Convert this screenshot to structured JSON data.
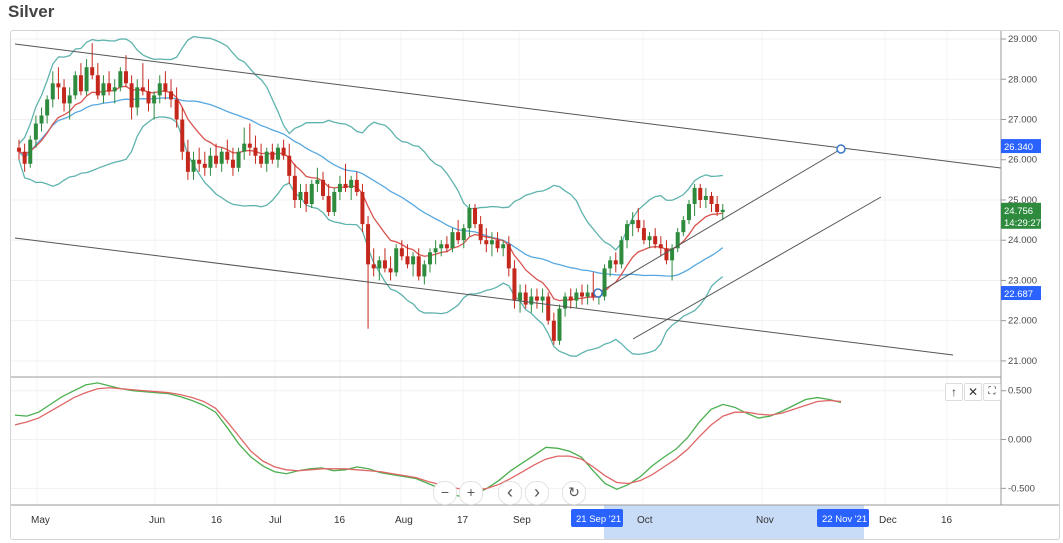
{
  "header": {
    "title": "Silver"
  },
  "colors": {
    "up": "#26a69a",
    "down": "#b2231f",
    "bull": "#2e8b3e",
    "bear": "#c4271c",
    "bollinger": "#5fb3ad",
    "ma_red": "#d9534f",
    "ma_blue": "#58a8e0",
    "channel": "#555555",
    "osc_green": "#4caf50",
    "osc_red": "#e06666",
    "highlight": "#c9dcf7"
  },
  "icons": [
    "arrow-up-icon",
    "close-icon",
    "maximize-icon",
    "zoom-out-icon",
    "zoom-in-icon",
    "chevron-left-icon",
    "chevron-right-icon",
    "reset-icon",
    "gear-icon"
  ],
  "controls": {
    "up": "↑",
    "close": "✕",
    "max": "⛶",
    "minus": "−",
    "plus": "+",
    "prev": "‹",
    "next": "›",
    "reset": "↻",
    "gear": "⚙"
  },
  "chart_data": [
    {
      "type": "candlestick",
      "title": "Silver",
      "ylim": [
        20.6,
        29.2
      ],
      "y_ticks": [
        "29.000",
        "28.000",
        "27.000",
        "26.000",
        "25.000",
        "24.000",
        "23.000",
        "22.000",
        "21.000"
      ],
      "x_ticks": [
        "May",
        "Jun",
        "16",
        "Jul",
        "16",
        "Aug",
        "17",
        "Sep",
        "Oct",
        "Nov",
        "Dec",
        "16"
      ],
      "price_tags": {
        "upper": "26.340",
        "current": "24.756",
        "timer": "14:29:27",
        "lower": "22.687"
      },
      "crosshair_labels": {
        "start": "21 Sep '21",
        "end": "22 Nov '21"
      },
      "ohlc": [
        [
          26.3,
          26.5,
          26.0,
          26.2
        ],
        [
          26.2,
          26.4,
          25.7,
          25.9
        ],
        [
          25.9,
          26.6,
          25.8,
          26.5
        ],
        [
          26.5,
          27.1,
          26.3,
          26.9
        ],
        [
          26.9,
          27.3,
          26.7,
          27.1
        ],
        [
          27.1,
          27.6,
          26.9,
          27.5
        ],
        [
          27.5,
          28.2,
          27.3,
          27.9
        ],
        [
          27.9,
          28.3,
          27.5,
          27.8
        ],
        [
          27.8,
          28.0,
          27.2,
          27.4
        ],
        [
          27.4,
          27.8,
          27.0,
          27.6
        ],
        [
          27.6,
          28.2,
          27.5,
          28.1
        ],
        [
          28.1,
          28.4,
          27.6,
          27.7
        ],
        [
          27.7,
          28.5,
          27.6,
          28.3
        ],
        [
          28.3,
          28.9,
          28.0,
          28.1
        ],
        [
          28.1,
          28.4,
          27.5,
          27.6
        ],
        [
          27.6,
          28.1,
          27.4,
          27.9
        ],
        [
          27.9,
          28.2,
          27.6,
          27.7
        ],
        [
          27.7,
          28.0,
          27.4,
          27.8
        ],
        [
          27.8,
          28.3,
          27.7,
          28.2
        ],
        [
          28.2,
          28.6,
          27.8,
          27.9
        ],
        [
          27.9,
          28.1,
          27.0,
          27.3
        ],
        [
          27.3,
          28.0,
          27.1,
          27.8
        ],
        [
          27.8,
          28.4,
          27.6,
          27.7
        ],
        [
          27.7,
          28.0,
          27.2,
          27.4
        ],
        [
          27.4,
          27.7,
          27.0,
          27.6
        ],
        [
          27.6,
          28.1,
          27.4,
          27.9
        ],
        [
          27.9,
          28.2,
          27.5,
          27.7
        ],
        [
          27.7,
          28.0,
          27.3,
          27.5
        ],
        [
          27.5,
          27.8,
          26.8,
          27.0
        ],
        [
          27.0,
          27.3,
          26.0,
          26.2
        ],
        [
          26.2,
          26.5,
          25.5,
          25.7
        ],
        [
          25.7,
          26.2,
          25.5,
          26.0
        ],
        [
          26.0,
          26.3,
          25.7,
          25.9
        ],
        [
          25.9,
          26.2,
          25.6,
          25.8
        ],
        [
          25.8,
          26.3,
          25.6,
          26.1
        ],
        [
          26.1,
          26.4,
          25.8,
          25.9
        ],
        [
          25.9,
          26.3,
          25.7,
          26.2
        ],
        [
          26.2,
          26.5,
          25.9,
          26.0
        ],
        [
          26.0,
          26.3,
          25.6,
          25.8
        ],
        [
          25.8,
          26.3,
          25.7,
          26.2
        ],
        [
          26.2,
          26.8,
          26.0,
          26.4
        ],
        [
          26.4,
          26.9,
          26.1,
          26.3
        ],
        [
          26.3,
          26.6,
          25.9,
          26.1
        ],
        [
          26.1,
          26.4,
          25.8,
          25.9
        ],
        [
          25.9,
          26.3,
          25.7,
          26.2
        ],
        [
          26.2,
          26.4,
          25.9,
          26.0
        ],
        [
          26.0,
          26.4,
          25.8,
          26.3
        ],
        [
          26.3,
          26.5,
          26.0,
          26.1
        ],
        [
          26.1,
          26.4,
          25.4,
          25.6
        ],
        [
          25.6,
          25.9,
          24.8,
          25.0
        ],
        [
          25.0,
          25.4,
          24.8,
          25.2
        ],
        [
          25.2,
          25.4,
          24.7,
          24.9
        ],
        [
          24.9,
          25.5,
          24.8,
          25.4
        ],
        [
          25.4,
          25.8,
          25.2,
          25.5
        ],
        [
          25.5,
          25.7,
          25.0,
          25.1
        ],
        [
          25.1,
          25.4,
          24.6,
          24.7
        ],
        [
          24.7,
          25.3,
          24.6,
          25.2
        ],
        [
          25.2,
          25.6,
          25.0,
          25.4
        ],
        [
          25.4,
          25.9,
          25.2,
          25.3
        ],
        [
          25.3,
          25.6,
          25.0,
          25.5
        ],
        [
          25.5,
          25.7,
          25.1,
          25.2
        ],
        [
          25.2,
          25.4,
          24.2,
          24.4
        ],
        [
          24.4,
          24.6,
          21.8,
          23.4
        ],
        [
          23.4,
          23.8,
          23.1,
          23.3
        ],
        [
          23.3,
          23.6,
          23.0,
          23.5
        ],
        [
          23.5,
          23.8,
          23.2,
          23.3
        ],
        [
          23.3,
          23.6,
          23.0,
          23.2
        ],
        [
          23.2,
          23.9,
          23.1,
          23.8
        ],
        [
          23.8,
          24.0,
          23.5,
          23.6
        ],
        [
          23.6,
          23.9,
          23.3,
          23.4
        ],
        [
          23.4,
          23.7,
          23.1,
          23.6
        ],
        [
          23.6,
          23.8,
          23.0,
          23.1
        ],
        [
          23.1,
          23.5,
          22.9,
          23.4
        ],
        [
          23.4,
          23.8,
          23.2,
          23.7
        ],
        [
          23.7,
          24.0,
          23.4,
          23.8
        ],
        [
          23.8,
          24.0,
          23.6,
          23.9
        ],
        [
          23.9,
          24.1,
          23.7,
          23.8
        ],
        [
          23.8,
          24.3,
          23.7,
          24.2
        ],
        [
          24.2,
          24.5,
          23.9,
          24.0
        ],
        [
          24.0,
          24.4,
          23.8,
          24.3
        ],
        [
          24.3,
          24.9,
          24.1,
          24.8
        ],
        [
          24.8,
          24.9,
          24.3,
          24.4
        ],
        [
          24.4,
          24.6,
          23.9,
          24.0
        ],
        [
          24.0,
          24.3,
          23.7,
          23.9
        ],
        [
          23.9,
          24.2,
          23.6,
          24.0
        ],
        [
          24.0,
          24.2,
          23.7,
          23.8
        ],
        [
          23.8,
          24.0,
          23.6,
          23.9
        ],
        [
          23.9,
          24.1,
          23.1,
          23.3
        ],
        [
          23.3,
          23.5,
          22.3,
          22.5
        ],
        [
          22.5,
          22.9,
          22.2,
          22.7
        ],
        [
          22.7,
          22.9,
          22.3,
          22.4
        ],
        [
          22.4,
          22.8,
          22.2,
          22.6
        ],
        [
          22.6,
          22.8,
          22.3,
          22.5
        ],
        [
          22.5,
          22.8,
          22.2,
          22.6
        ],
        [
          22.6,
          22.7,
          21.9,
          22.0
        ],
        [
          22.0,
          22.2,
          21.4,
          21.5
        ],
        [
          21.5,
          22.4,
          21.4,
          22.3
        ],
        [
          22.3,
          22.7,
          22.1,
          22.6
        ],
        [
          22.6,
          22.8,
          22.3,
          22.5
        ],
        [
          22.5,
          22.8,
          22.3,
          22.7
        ],
        [
          22.7,
          22.9,
          22.4,
          22.6
        ],
        [
          22.6,
          22.9,
          22.4,
          22.7
        ],
        [
          22.7,
          23.2,
          22.5,
          22.6
        ],
        [
          22.6,
          22.8,
          22.4,
          22.6
        ],
        [
          22.6,
          23.4,
          22.5,
          23.3
        ],
        [
          23.3,
          23.6,
          23.1,
          23.5
        ],
        [
          23.5,
          23.7,
          23.2,
          23.4
        ],
        [
          23.4,
          24.1,
          23.3,
          24.0
        ],
        [
          24.0,
          24.5,
          23.8,
          24.4
        ],
        [
          24.4,
          24.7,
          24.1,
          24.5
        ],
        [
          24.5,
          24.8,
          24.2,
          24.3
        ],
        [
          24.3,
          24.5,
          23.9,
          24.0
        ],
        [
          24.0,
          24.2,
          23.8,
          24.1
        ],
        [
          24.1,
          24.3,
          23.8,
          23.9
        ],
        [
          23.9,
          24.1,
          23.6,
          23.8
        ],
        [
          23.8,
          24.0,
          23.4,
          23.5
        ],
        [
          23.5,
          23.9,
          23.0,
          23.8
        ],
        [
          23.8,
          24.3,
          23.7,
          24.2
        ],
        [
          24.2,
          24.6,
          24.1,
          24.5
        ],
        [
          24.5,
          25.0,
          24.4,
          24.9
        ],
        [
          24.9,
          25.4,
          24.6,
          25.3
        ],
        [
          25.3,
          25.4,
          24.8,
          25.0
        ],
        [
          25.0,
          25.3,
          24.8,
          25.1
        ],
        [
          25.1,
          25.2,
          24.7,
          24.9
        ],
        [
          24.9,
          25.1,
          24.6,
          24.7
        ],
        [
          24.7,
          24.9,
          24.5,
          24.756
        ]
      ]
    },
    {
      "type": "line",
      "ylim": [
        -0.65,
        0.62
      ],
      "y_ticks": [
        "0.500",
        "0.000",
        "-0.500"
      ],
      "series": [
        {
          "values": [
            0.25,
            0.24,
            0.28,
            0.36,
            0.44,
            0.5,
            0.56,
            0.58,
            0.55,
            0.52,
            0.5,
            0.49,
            0.48,
            0.47,
            0.44,
            0.4,
            0.35,
            0.28,
            0.12,
            -0.05,
            -0.18,
            -0.27,
            -0.33,
            -0.35,
            -0.32,
            -0.3,
            -0.29,
            -0.32,
            -0.31,
            -0.28,
            -0.3,
            -0.34,
            -0.36,
            -0.38,
            -0.4,
            -0.45,
            -0.5,
            -0.56,
            -0.59,
            -0.56,
            -0.5,
            -0.42,
            -0.32,
            -0.24,
            -0.16,
            -0.08,
            -0.09,
            -0.12,
            -0.18,
            -0.32,
            -0.45,
            -0.51,
            -0.46,
            -0.38,
            -0.27,
            -0.18,
            -0.1,
            0.02,
            0.18,
            0.31,
            0.36,
            0.33,
            0.27,
            0.22,
            0.24,
            0.29,
            0.35,
            0.41,
            0.43,
            0.41,
            0.38
          ]
        },
        {
          "values": [
            0.15,
            0.18,
            0.22,
            0.29,
            0.36,
            0.43,
            0.48,
            0.52,
            0.53,
            0.52,
            0.51,
            0.5,
            0.49,
            0.48,
            0.46,
            0.43,
            0.39,
            0.32,
            0.18,
            0.03,
            -0.12,
            -0.22,
            -0.28,
            -0.31,
            -0.32,
            -0.31,
            -0.3,
            -0.3,
            -0.3,
            -0.31,
            -0.32,
            -0.33,
            -0.35,
            -0.37,
            -0.39,
            -0.43,
            -0.46,
            -0.49,
            -0.51,
            -0.52,
            -0.5,
            -0.46,
            -0.4,
            -0.33,
            -0.26,
            -0.2,
            -0.17,
            -0.17,
            -0.2,
            -0.28,
            -0.37,
            -0.44,
            -0.45,
            -0.42,
            -0.36,
            -0.28,
            -0.2,
            -0.1,
            0.03,
            0.15,
            0.24,
            0.28,
            0.28,
            0.26,
            0.25,
            0.27,
            0.31,
            0.35,
            0.39,
            0.4,
            0.39
          ]
        }
      ]
    }
  ]
}
